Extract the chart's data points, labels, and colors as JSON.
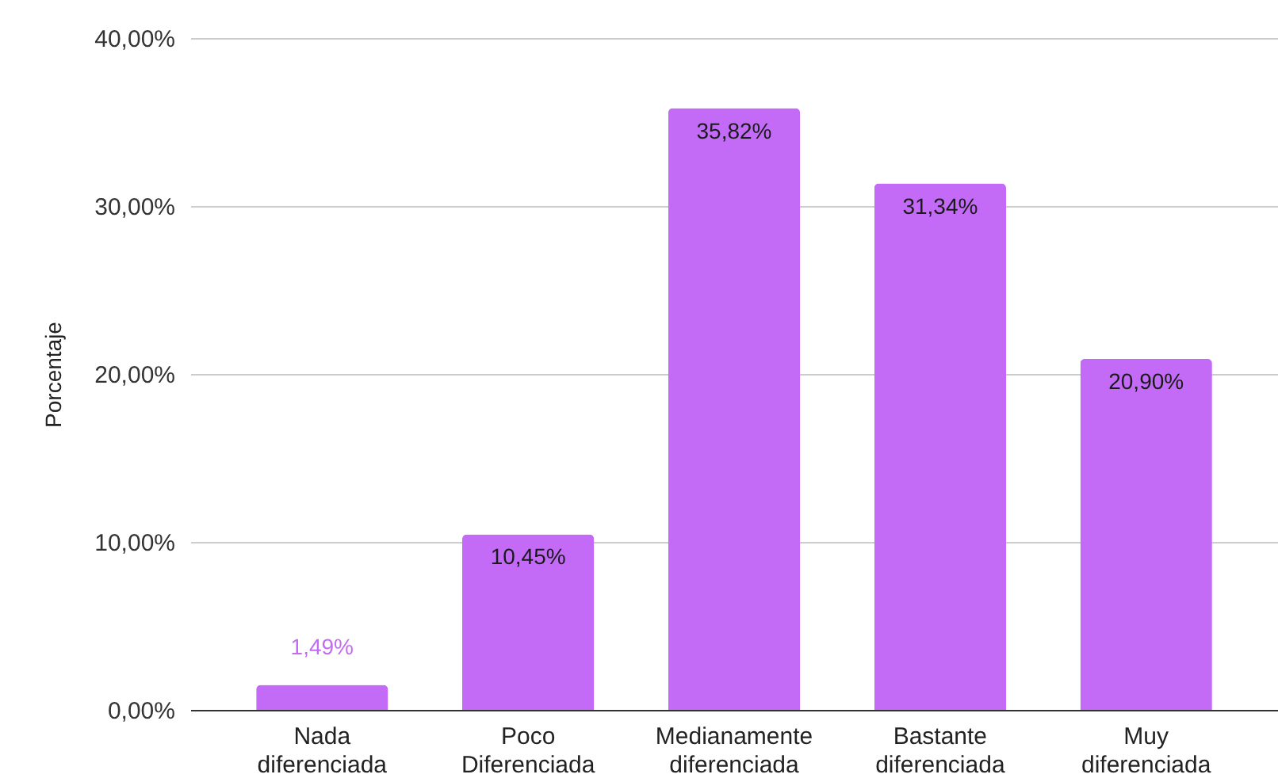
{
  "chart_data": {
    "type": "bar",
    "categories": [
      "Nada diferenciada",
      "Poco Diferenciada",
      "Medianamente diferenciada",
      "Bastante diferenciada",
      "Muy diferenciada"
    ],
    "values": [
      1.49,
      10.45,
      35.82,
      31.34,
      20.9
    ],
    "value_labels": [
      "1,49%",
      "10,45%",
      "35,82%",
      "31,34%",
      "20,90%"
    ],
    "color": "#c36bf6",
    "ylabel": "Porcentaje",
    "ylim": [
      0,
      40
    ],
    "yticks": [
      {
        "value": 0,
        "label": "0,00%"
      },
      {
        "value": 10,
        "label": "10,00%"
      },
      {
        "value": 20,
        "label": "20,00%"
      },
      {
        "value": 30,
        "label": "30,00%"
      },
      {
        "value": 40,
        "label": "40,00%"
      }
    ],
    "grid": "y"
  }
}
